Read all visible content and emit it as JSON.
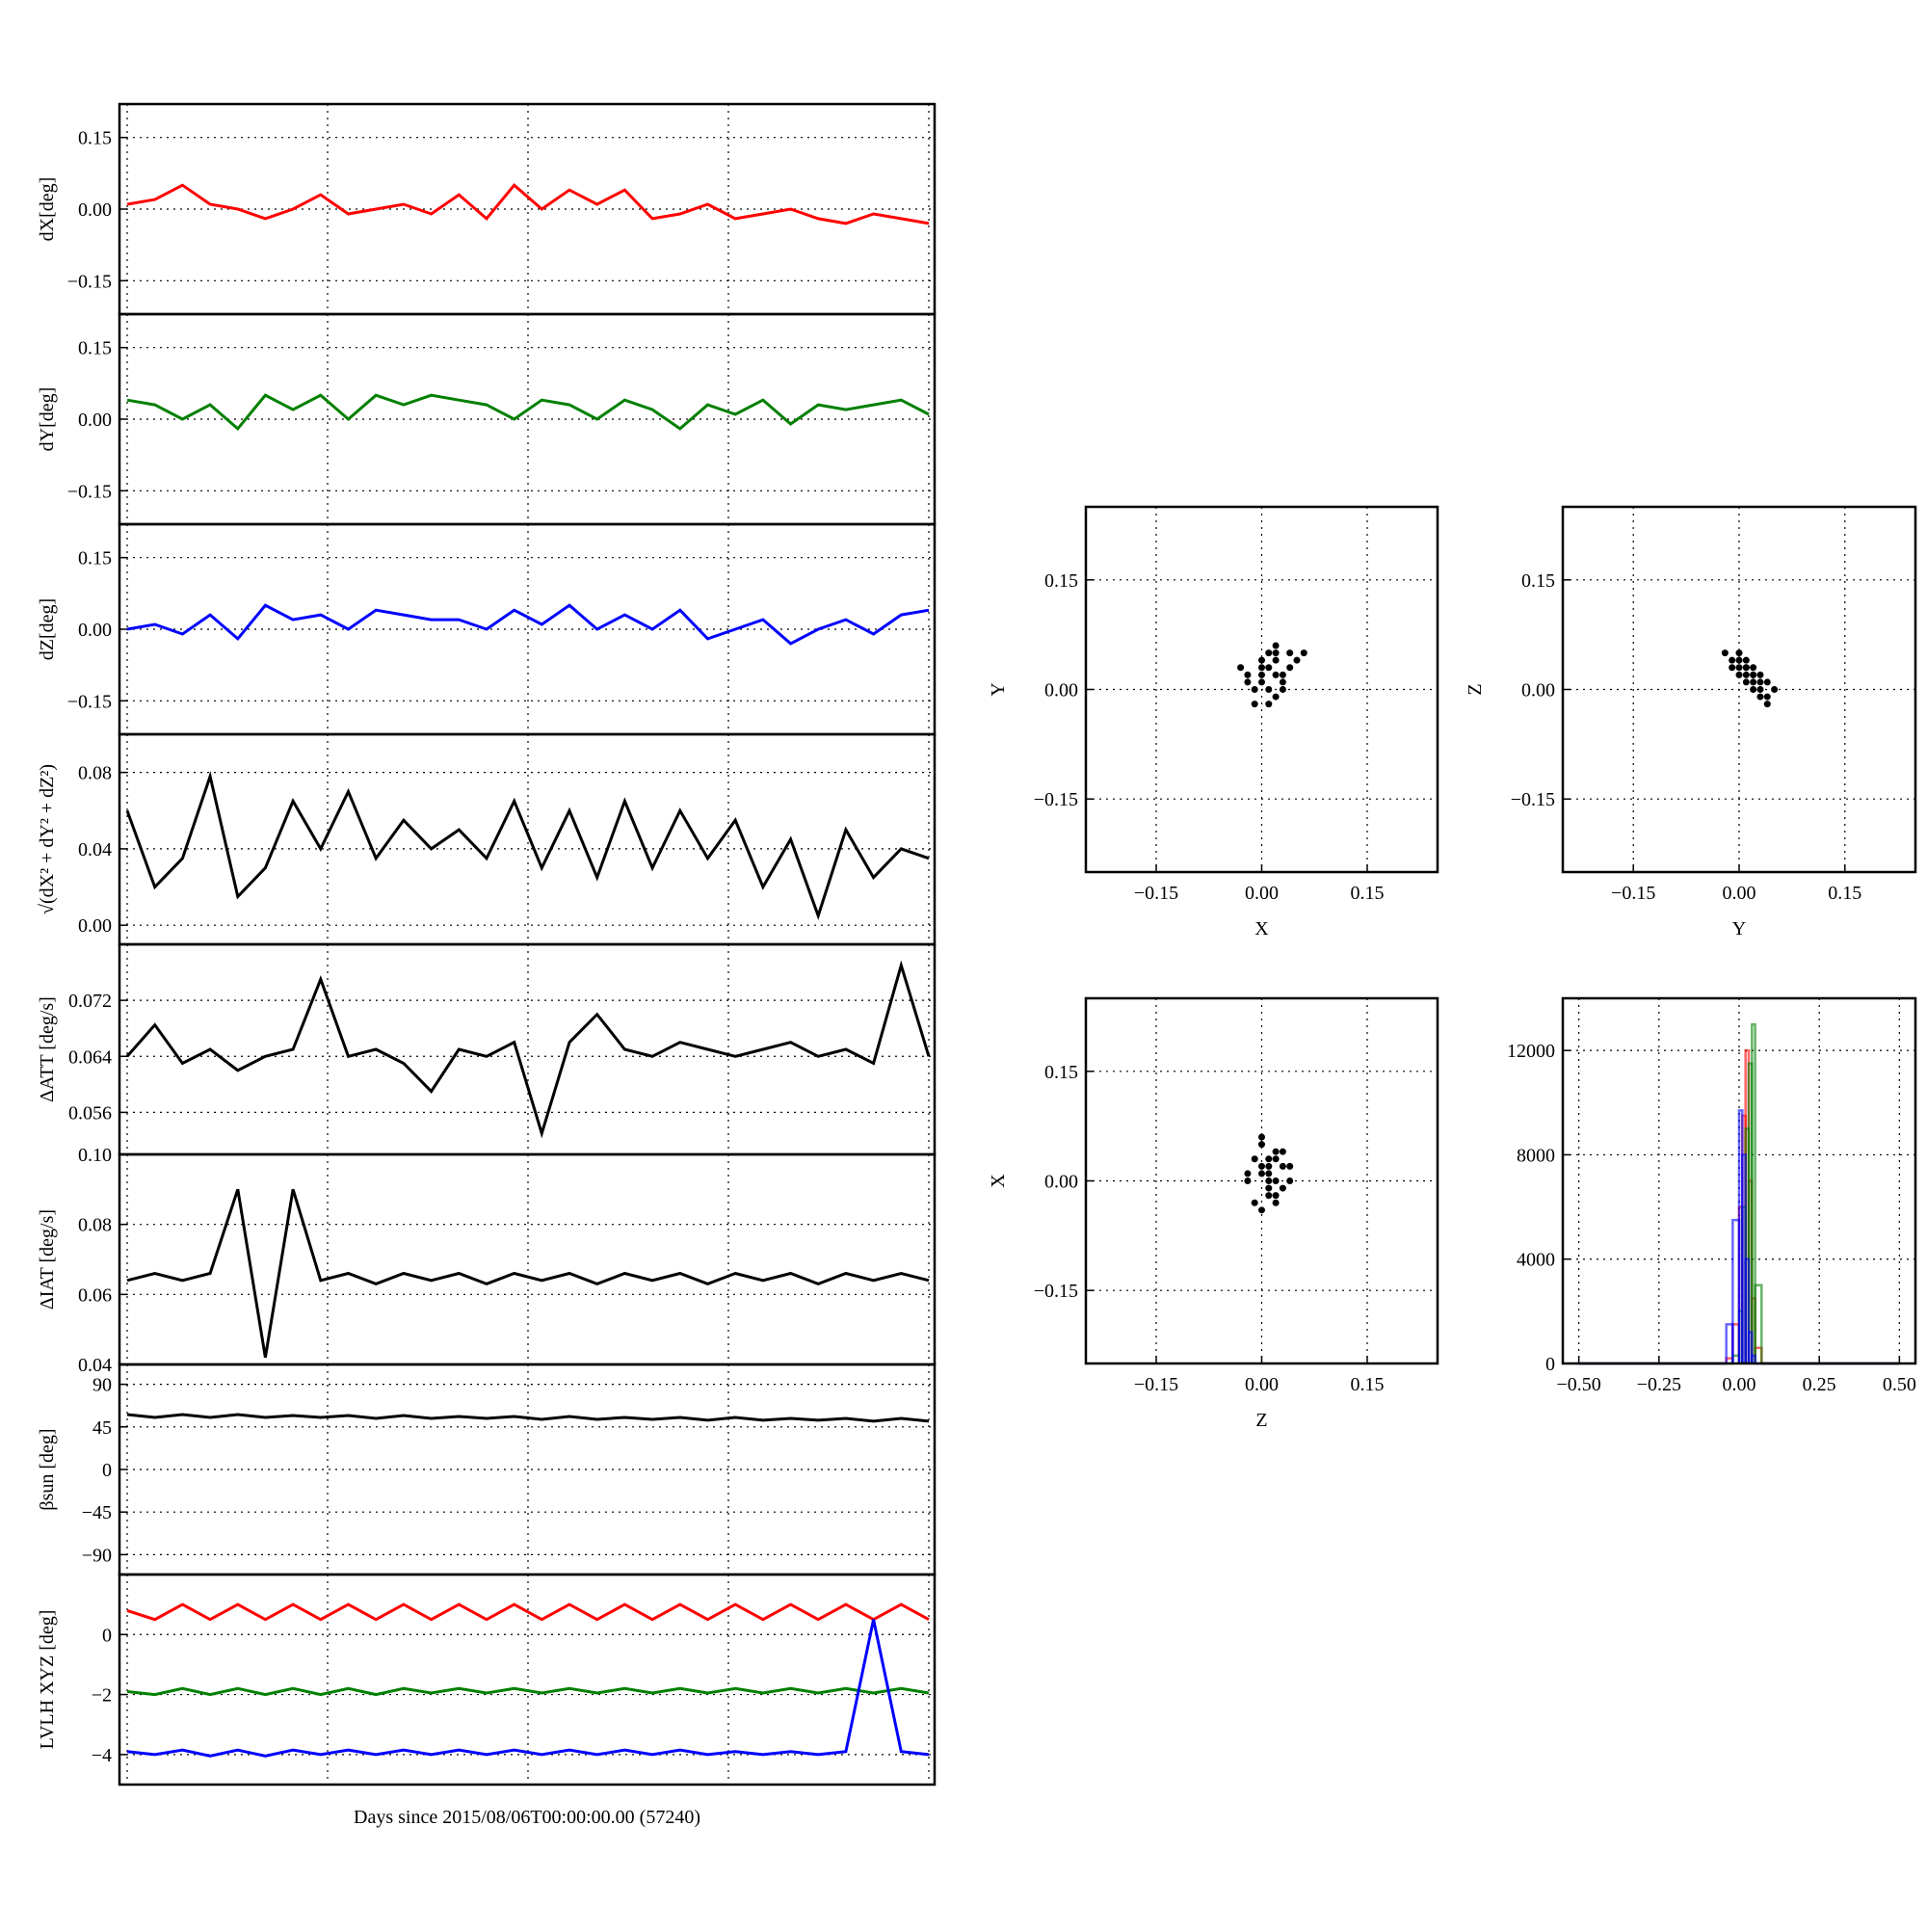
{
  "chart_data": [
    {
      "type": "line",
      "ylabel": "dX[deg]",
      "ylim": [
        -0.22,
        0.22
      ],
      "yticks": [
        {
          "value": -0.15,
          "label": "−0.15"
        },
        {
          "value": 0,
          "label": "0.00"
        },
        0.15
      ],
      "grid": true,
      "series": [
        {
          "color": "#ff0000",
          "values": [
            0.01,
            0.02,
            0.05,
            0.01,
            0.0,
            -0.02,
            0.0,
            0.03,
            -0.01,
            0.0,
            0.01,
            -0.01,
            0.03,
            -0.02,
            0.05,
            0.0,
            0.04,
            0.01,
            0.04,
            -0.02,
            -0.01,
            0.01,
            -0.02,
            -0.01,
            0.0,
            -0.02,
            -0.03,
            -0.01,
            -0.02,
            -0.03
          ]
        }
      ]
    },
    {
      "type": "line",
      "ylabel": "dY[deg]",
      "ylim": [
        -0.22,
        0.22
      ],
      "yticks": [
        {
          "value": -0.15,
          "label": "−0.15"
        },
        {
          "value": 0,
          "label": "0.00"
        },
        0.15
      ],
      "grid": true,
      "series": [
        {
          "color": "#008000",
          "values": [
            0.04,
            0.03,
            0.0,
            0.03,
            -0.02,
            0.05,
            0.02,
            0.05,
            0.0,
            0.05,
            0.03,
            0.05,
            0.04,
            0.03,
            0.0,
            0.04,
            0.03,
            0.0,
            0.04,
            0.02,
            -0.02,
            0.03,
            0.01,
            0.04,
            -0.01,
            0.03,
            0.02,
            0.03,
            0.04,
            0.01
          ]
        }
      ]
    },
    {
      "type": "line",
      "ylabel": "dZ[deg]",
      "ylim": [
        -0.22,
        0.22
      ],
      "yticks": [
        {
          "value": -0.15,
          "label": "−0.15"
        },
        {
          "value": 0,
          "label": "0.00"
        },
        0.15
      ],
      "grid": true,
      "series": [
        {
          "color": "#0000ff",
          "values": [
            0.0,
            0.01,
            -0.01,
            0.03,
            -0.02,
            0.05,
            0.02,
            0.03,
            0.0,
            0.04,
            0.03,
            0.02,
            0.02,
            0.0,
            0.04,
            0.01,
            0.05,
            0.0,
            0.03,
            0.0,
            0.04,
            -0.02,
            0.0,
            0.02,
            -0.03,
            0.0,
            0.02,
            -0.01,
            0.03,
            0.04
          ]
        }
      ]
    },
    {
      "type": "line",
      "ylabel": "√(dX² + dY² + dZ²)",
      "ylim": [
        -0.01,
        0.1
      ],
      "yticks": [
        {
          "value": 0,
          "label": "0.00"
        },
        0.04,
        0.08
      ],
      "grid": true,
      "series": [
        {
          "color": "#000000",
          "values": [
            0.06,
            0.02,
            0.035,
            0.078,
            0.015,
            0.03,
            0.065,
            0.04,
            0.07,
            0.035,
            0.055,
            0.04,
            0.05,
            0.035,
            0.065,
            0.03,
            0.06,
            0.025,
            0.065,
            0.03,
            0.06,
            0.035,
            0.055,
            0.02,
            0.045,
            0.005,
            0.05,
            0.025,
            0.04,
            0.035
          ]
        }
      ]
    },
    {
      "type": "line",
      "ylabel": "ΔATT [deg/s]",
      "ylim": [
        0.05,
        0.08
      ],
      "yticks": [
        0.056,
        0.064,
        0.072
      ],
      "grid": true,
      "series": [
        {
          "color": "#000000",
          "values": [
            0.064,
            0.0685,
            0.063,
            0.065,
            0.062,
            0.064,
            0.065,
            0.075,
            0.064,
            0.065,
            0.063,
            0.059,
            0.065,
            0.064,
            0.066,
            0.053,
            0.066,
            0.07,
            0.065,
            0.064,
            0.066,
            0.065,
            0.064,
            0.065,
            0.066,
            0.064,
            0.065,
            0.063,
            0.077,
            0.064
          ]
        }
      ]
    },
    {
      "type": "line",
      "ylabel": "ΔIAT [deg/s]",
      "ylim": [
        0.04,
        0.1
      ],
      "yticks": [
        0.04,
        0.06,
        0.08,
        {
          "value": 0.1,
          "label": "0.10"
        }
      ],
      "grid": true,
      "series": [
        {
          "color": "#000000",
          "values": [
            0.064,
            0.066,
            0.064,
            0.066,
            0.09,
            0.042,
            0.09,
            0.064,
            0.066,
            0.063,
            0.066,
            0.064,
            0.066,
            0.063,
            0.066,
            0.064,
            0.066,
            0.063,
            0.066,
            0.064,
            0.066,
            0.063,
            0.066,
            0.064,
            0.066,
            0.063,
            0.066,
            0.064,
            0.066,
            0.064
          ]
        }
      ]
    },
    {
      "type": "line",
      "ylabel": "βsun [deg]",
      "ylim": [
        -111,
        111
      ],
      "yticks": [
        {
          "value": -90,
          "label": "−90"
        },
        {
          "value": -45,
          "label": "−45"
        },
        0,
        45,
        90
      ],
      "grid": true,
      "series": [
        {
          "color": "#000000",
          "values": [
            58,
            55,
            58,
            55,
            58,
            55,
            57,
            55,
            57,
            54,
            57,
            54,
            56,
            54,
            56,
            53,
            56,
            53,
            55,
            53,
            55,
            52,
            55,
            52,
            54,
            52,
            54,
            51,
            54,
            51
          ]
        }
      ]
    },
    {
      "type": "line",
      "ylabel": "LVLH XYZ [deg]",
      "xlabel": "Days since 2015/08/06T00:00:00.00 (57240)",
      "ylim": [
        -5,
        2
      ],
      "yticks": [
        {
          "value": -4,
          "label": "−4"
        },
        {
          "value": -2,
          "label": "−2"
        },
        0
      ],
      "grid": true,
      "series": [
        {
          "color": "#ff0000",
          "values": [
            0.8,
            0.5,
            1.0,
            0.5,
            1.0,
            0.5,
            1.0,
            0.5,
            1.0,
            0.5,
            1.0,
            0.5,
            1.0,
            0.5,
            1.0,
            0.5,
            1.0,
            0.5,
            1.0,
            0.5,
            1.0,
            0.5,
            1.0,
            0.5,
            1.0,
            0.5,
            1.0,
            0.5,
            1.0,
            0.5
          ]
        },
        {
          "color": "#008000",
          "values": [
            -1.9,
            -2.0,
            -1.8,
            -2.0,
            -1.8,
            -2.0,
            -1.8,
            -2.0,
            -1.8,
            -2.0,
            -1.8,
            -1.95,
            -1.8,
            -1.95,
            -1.8,
            -1.95,
            -1.8,
            -1.95,
            -1.8,
            -1.95,
            -1.8,
            -1.95,
            -1.8,
            -1.95,
            -1.8,
            -1.95,
            -1.8,
            -1.95,
            -1.8,
            -1.95
          ]
        },
        {
          "color": "#0000ff",
          "values": [
            -3.9,
            -4.0,
            -3.85,
            -4.05,
            -3.85,
            -4.05,
            -3.85,
            -4.0,
            -3.85,
            -4.0,
            -3.85,
            -4.0,
            -3.85,
            -4.0,
            -3.85,
            -4.0,
            -3.85,
            -4.0,
            -3.85,
            -4.0,
            -3.85,
            -4.0,
            -3.9,
            -4.0,
            -3.9,
            -4.0,
            -3.9,
            0.5,
            -3.9,
            -4.0
          ]
        }
      ]
    },
    {
      "type": "scatter",
      "xlabel": "X",
      "ylabel": "Y",
      "xlim": [
        -0.25,
        0.25
      ],
      "ylim": [
        -0.25,
        0.25
      ],
      "xticks": [
        {
          "value": -0.15,
          "label": "−0.15"
        },
        {
          "value": 0,
          "label": "0.00"
        },
        0.15
      ],
      "yticks": [
        {
          "value": -0.15,
          "label": "−0.15"
        },
        {
          "value": 0,
          "label": "0.00"
        },
        0.15
      ],
      "grid": true,
      "color": "#000000",
      "x": [
        -0.02,
        0.0,
        0.02,
        0.04,
        0.01,
        -0.01,
        0.03,
        0.05,
        0.0,
        0.02,
        -0.03,
        0.01,
        0.04,
        0.02,
        -0.01,
        0.0,
        0.03,
        0.01,
        0.02,
        0.06,
        -0.02,
        0.0,
        0.01,
        0.03,
        0.02
      ],
      "values": [
        0.02,
        0.04,
        0.05,
        0.03,
        0.0,
        -0.02,
        0.01,
        0.04,
        0.02,
        -0.01,
        0.03,
        0.05,
        0.05,
        0.02,
        0.0,
        0.03,
        0.02,
        -0.02,
        0.06,
        0.05,
        0.01,
        0.01,
        0.03,
        0.0,
        0.04
      ]
    },
    {
      "type": "scatter",
      "xlabel": "Y",
      "ylabel": "Z",
      "xlim": [
        -0.25,
        0.25
      ],
      "ylim": [
        -0.25,
        0.25
      ],
      "xticks": [
        {
          "value": -0.15,
          "label": "−0.15"
        },
        {
          "value": 0,
          "label": "0.00"
        },
        0.15
      ],
      "yticks": [
        {
          "value": -0.15,
          "label": "−0.15"
        },
        {
          "value": 0,
          "label": "0.00"
        },
        0.15
      ],
      "grid": true,
      "color": "#000000",
      "x": [
        -0.02,
        -0.01,
        0.0,
        0.01,
        0.02,
        0.03,
        0.04,
        0.0,
        0.01,
        0.02,
        0.03,
        0.04,
        -0.01,
        0.01,
        0.02,
        0.03,
        0.0,
        0.02,
        0.01,
        0.04,
        0.03,
        0.02,
        0.01,
        0.0,
        0.05
      ],
      "values": [
        0.05,
        0.04,
        0.05,
        0.03,
        0.02,
        0.01,
        -0.01,
        0.03,
        0.04,
        0.01,
        0.0,
        -0.02,
        0.03,
        0.02,
        0.03,
        0.02,
        0.04,
        0.0,
        0.01,
        0.01,
        -0.01,
        0.02,
        0.03,
        0.02,
        0.0
      ]
    },
    {
      "type": "scatter",
      "xlabel": "Z",
      "ylabel": "X",
      "xlim": [
        -0.25,
        0.25
      ],
      "ylim": [
        -0.25,
        0.25
      ],
      "xticks": [
        {
          "value": -0.15,
          "label": "−0.15"
        },
        {
          "value": 0,
          "label": "0.00"
        },
        0.15
      ],
      "yticks": [
        {
          "value": -0.15,
          "label": "−0.15"
        },
        {
          "value": 0,
          "label": "0.00"
        },
        0.15
      ],
      "grid": true,
      "color": "#000000",
      "x": [
        -0.02,
        0.0,
        0.02,
        0.04,
        0.01,
        -0.01,
        0.03,
        0.0,
        0.01,
        0.02,
        -0.02,
        0.03,
        0.01,
        0.0,
        0.02,
        0.04,
        -0.01,
        0.01,
        0.02,
        0.0,
        0.03,
        0.01,
        0.0,
        0.02,
        0.01
      ],
      "values": [
        0.01,
        0.05,
        0.03,
        0.0,
        -0.02,
        -0.03,
        0.02,
        0.06,
        0.0,
        0.04,
        0.0,
        -0.01,
        0.02,
        -0.04,
        -0.02,
        0.02,
        0.03,
        0.03,
        -0.03,
        0.01,
        0.04,
        -0.01,
        0.02,
        0.0,
        0.01
      ]
    },
    {
      "type": "histogram",
      "xlim": [
        -0.55,
        0.55
      ],
      "ylim": [
        0,
        14000
      ],
      "xticks": [
        {
          "value": -0.5,
          "label": "−0.50"
        },
        {
          "value": -0.25,
          "label": "−0.25"
        },
        {
          "value": 0,
          "label": "0.00"
        },
        0.25,
        {
          "value": 0.5,
          "label": "0.50"
        }
      ],
      "yticks": [
        0,
        4000,
        8000,
        12000
      ],
      "grid": true,
      "bins": [
        -0.5,
        -0.04,
        -0.02,
        0.0,
        0.01,
        0.02,
        0.03,
        0.04,
        0.05,
        0.07,
        0.5
      ],
      "series": [
        {
          "color": "#ff0000",
          "values": [
            0,
            200,
            1500,
            6000,
            9500,
            12000,
            7000,
            2500,
            600,
            0
          ]
        },
        {
          "color": "#008000",
          "values": [
            0,
            0,
            300,
            2000,
            6000,
            9000,
            11500,
            13000,
            3000,
            0
          ]
        },
        {
          "color": "#0000ff",
          "values": [
            0,
            1500,
            5500,
            9700,
            8000,
            4000,
            1200,
            300,
            0,
            0
          ]
        }
      ]
    }
  ]
}
